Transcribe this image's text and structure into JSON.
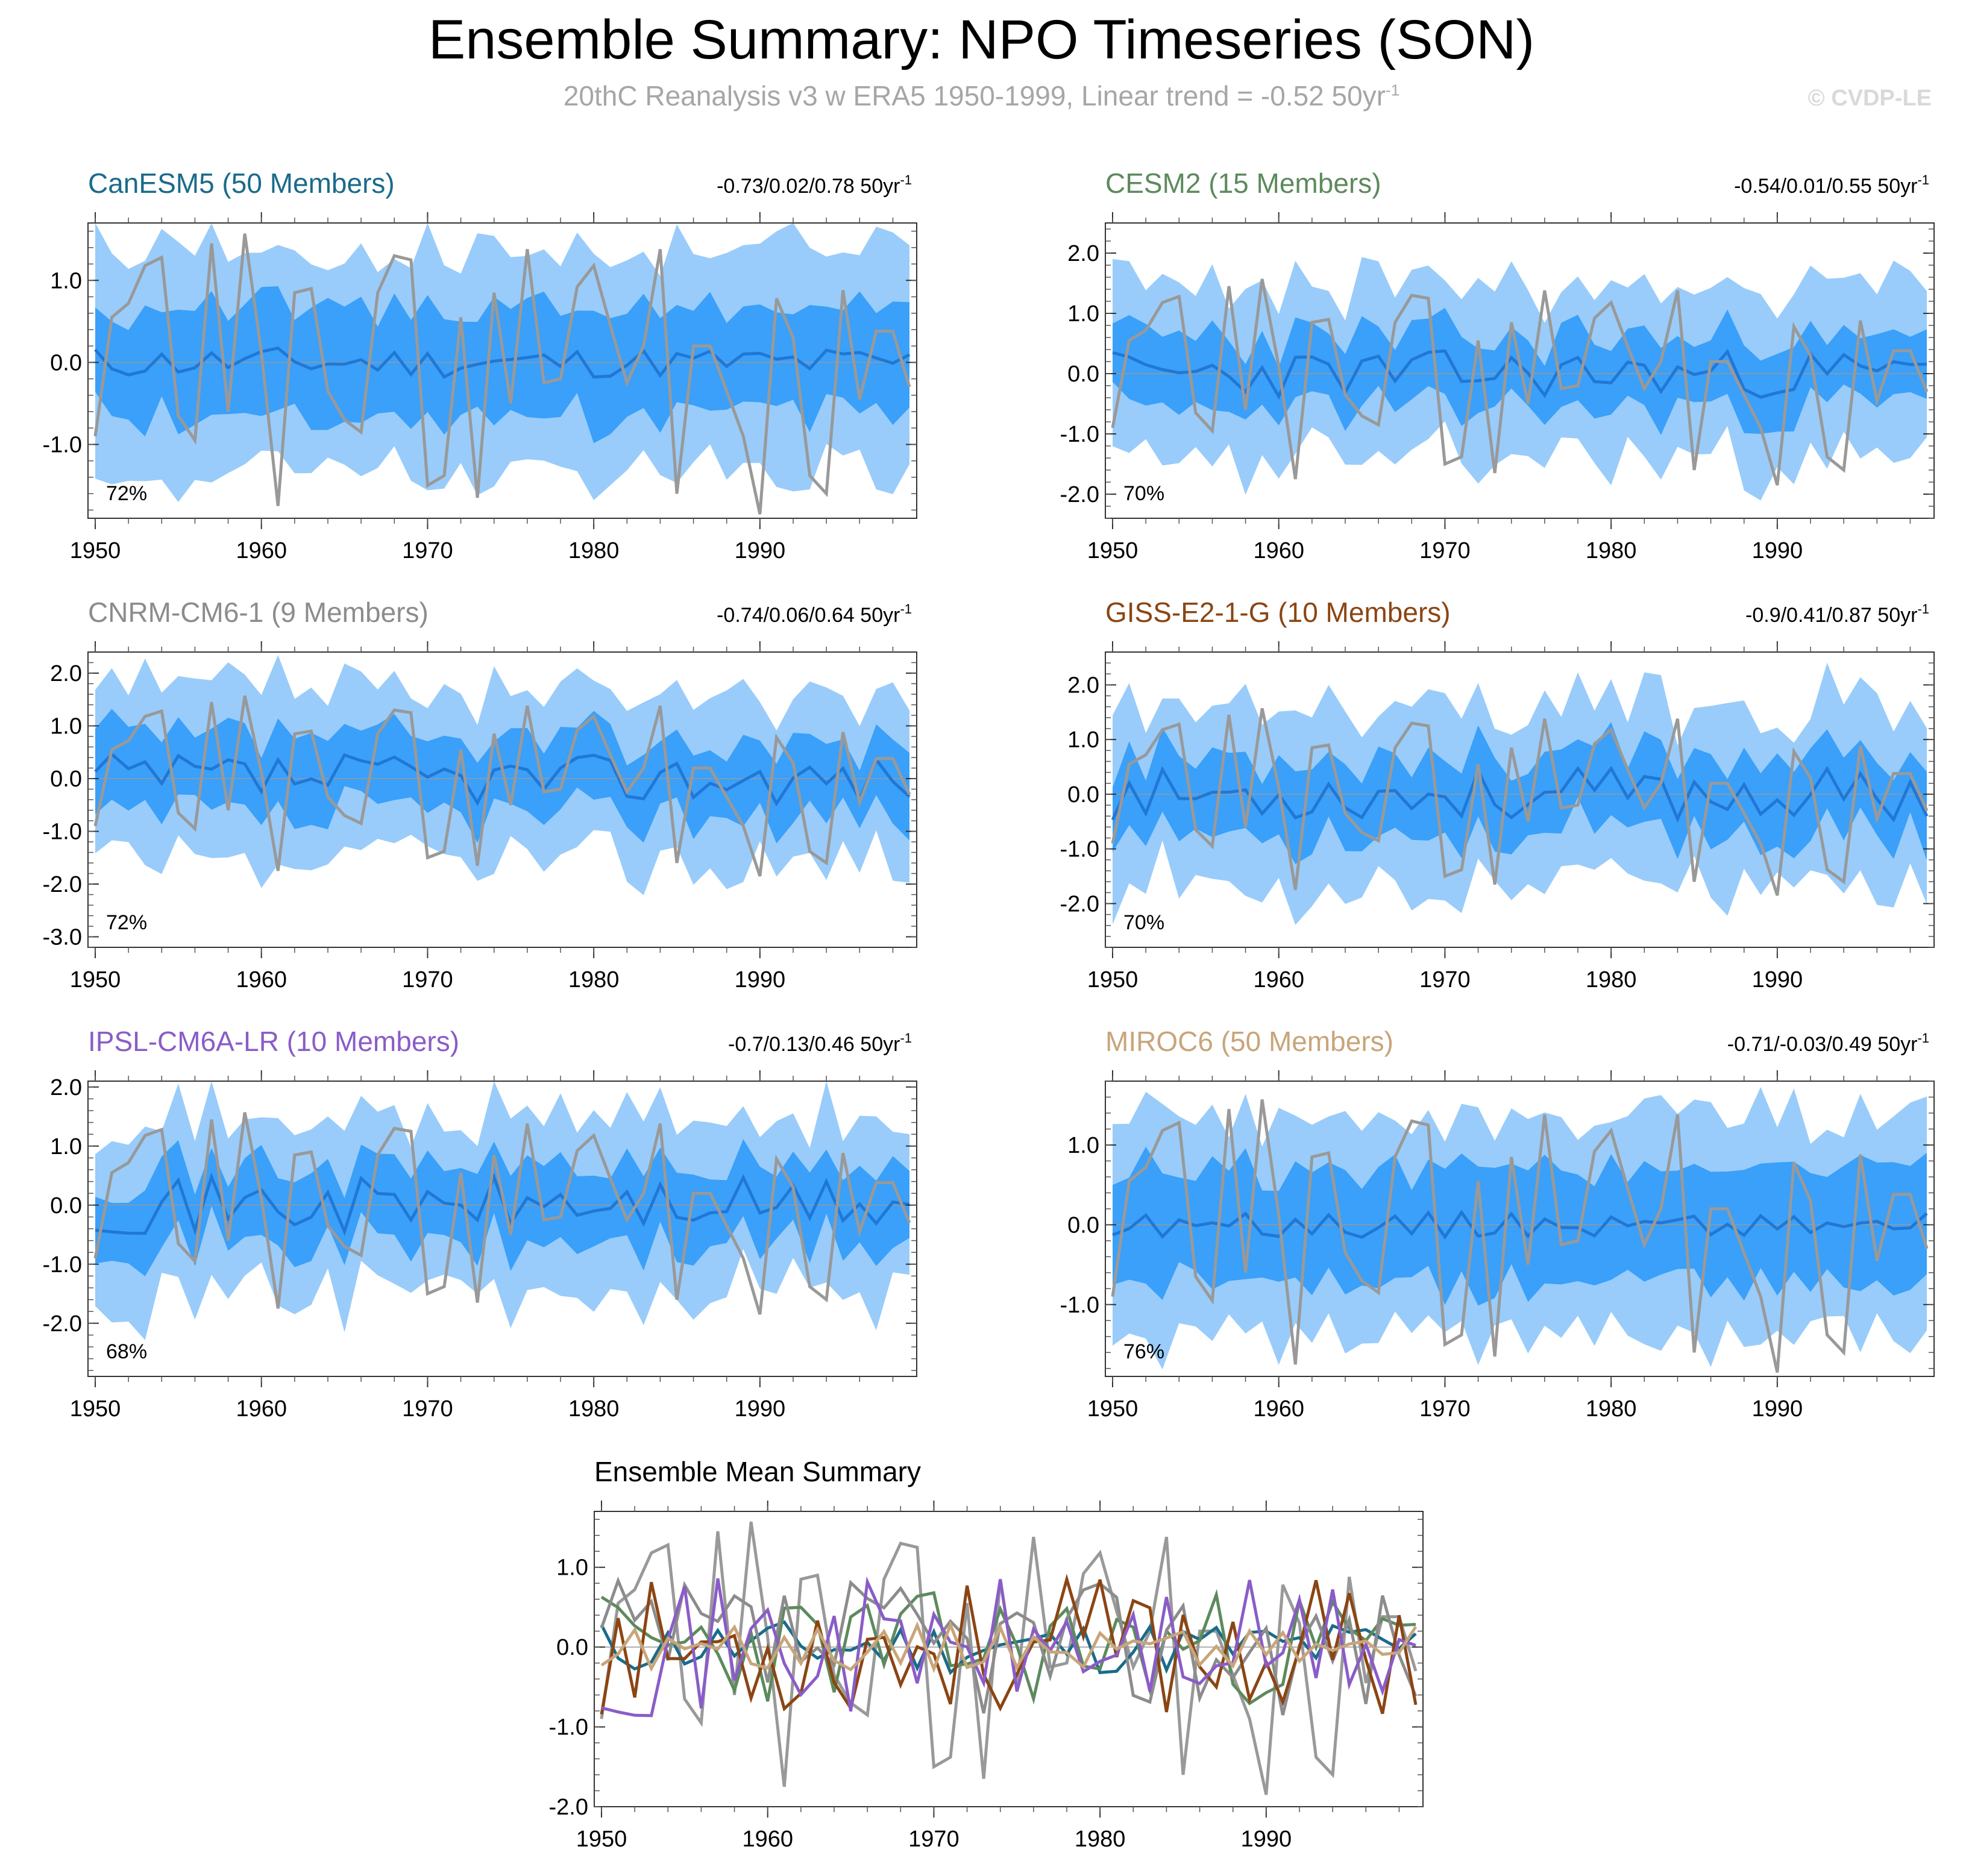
{
  "page": {
    "title": "Ensemble Summary: NPO Timeseries (SON)",
    "subtitle_main": "20thC Reanalysis v3 w ERA5 1950-1999, Linear trend = -0.52 50yr",
    "subtitle_sup": "-1",
    "watermark": "© CVDP-LE"
  },
  "colors": {
    "band_outer": "#99ccfa",
    "band_inner": "#3aa0f9",
    "ensemble_mean": "#2177d5",
    "observed": "#999999",
    "zero_line": "#999999"
  },
  "chart_data": [
    {
      "type": "area",
      "title": "CanESM5 (50 Members)",
      "title_color": "#1a6b8a",
      "trend_label": "-0.73/0.02/0.78 50yr",
      "trend_sup": "-1",
      "percent_label": "72%",
      "ylim": [
        -1.9,
        1.7
      ],
      "yticks": [
        1.0,
        0.0,
        -1.0
      ],
      "ytick_labels": [
        "1.0",
        "0.0",
        "-1.0"
      ],
      "xticks": [
        1950,
        1960,
        1970,
        1980,
        1990
      ],
      "seed": 11,
      "mean_amp": 0.12,
      "inner_half": 0.65,
      "outer_half": 1.35
    },
    {
      "type": "area",
      "title": "CESM2 (15 Members)",
      "title_color": "#5d8a5d",
      "trend_label": "-0.54/0.01/0.55 50yr",
      "trend_sup": "-1",
      "percent_label": "70%",
      "ylim": [
        -2.4,
        2.5
      ],
      "yticks": [
        2.0,
        1.0,
        0.0,
        -1.0,
        -2.0
      ],
      "ytick_labels": [
        "2.0",
        "1.0",
        "0.0",
        "-1.0",
        "-2.0"
      ],
      "xticks": [
        1950,
        1960,
        1970,
        1980,
        1990
      ],
      "seed": 23,
      "mean_amp": 0.25,
      "inner_half": 0.6,
      "outer_half": 1.4
    },
    {
      "type": "area",
      "title": "CNRM-CM6-1 (9 Members)",
      "title_color": "#8c8c8c",
      "trend_label": "-0.74/0.06/0.64 50yr",
      "trend_sup": "-1",
      "percent_label": "72%",
      "ylim": [
        -3.2,
        2.4
      ],
      "yticks": [
        2.0,
        1.0,
        0.0,
        -1.0,
        -2.0,
        -3.0
      ],
      "ytick_labels": [
        "2.0",
        "1.0",
        "0.0",
        "-1.0",
        "-2.0",
        "-3.0"
      ],
      "xticks": [
        1950,
        1960,
        1970,
        1980,
        1990
      ],
      "seed": 37,
      "mean_amp": 0.3,
      "inner_half": 0.7,
      "outer_half": 1.6
    },
    {
      "type": "area",
      "title": "GISS-E2-1-G (10 Members)",
      "title_color": "#8b4513",
      "trend_label": "-0.9/0.41/0.87 50yr",
      "trend_sup": "-1",
      "percent_label": "70%",
      "ylim": [
        -2.8,
        2.6
      ],
      "yticks": [
        2.0,
        1.0,
        0.0,
        -1.0,
        -2.0
      ],
      "ytick_labels": [
        "2.0",
        "1.0",
        "0.0",
        "-1.0",
        "-2.0"
      ],
      "xticks": [
        1950,
        1960,
        1970,
        1980,
        1990
      ],
      "seed": 53,
      "mean_amp": 0.3,
      "inner_half": 0.7,
      "outer_half": 1.6
    },
    {
      "type": "area",
      "title": "IPSL-CM6A-LR (10 Members)",
      "title_color": "#8a5cc8",
      "trend_label": "-0.7/0.13/0.46 50yr",
      "trend_sup": "-1",
      "percent_label": "68%",
      "ylim": [
        -2.9,
        2.1
      ],
      "yticks": [
        2.0,
        1.0,
        0.0,
        -1.0,
        -2.0
      ],
      "ytick_labels": [
        "2.0",
        "1.0",
        "0.0",
        "-1.0",
        "-2.0"
      ],
      "xticks": [
        1950,
        1960,
        1970,
        1980,
        1990
      ],
      "seed": 71,
      "mean_amp": 0.3,
      "inner_half": 0.65,
      "outer_half": 1.45
    },
    {
      "type": "area",
      "title": "MIROC6 (50 Members)",
      "title_color": "#c8a57a",
      "trend_label": "-0.71/-0.03/0.49 50yr",
      "trend_sup": "-1",
      "percent_label": "76%",
      "ylim": [
        -1.9,
        1.8
      ],
      "yticks": [
        1.0,
        0.0,
        -1.0
      ],
      "ytick_labels": [
        "1.0",
        "0.0",
        "-1.0"
      ],
      "xticks": [
        1950,
        1960,
        1970,
        1980,
        1990
      ],
      "seed": 89,
      "mean_amp": 0.1,
      "inner_half": 0.7,
      "outer_half": 1.35
    },
    {
      "type": "line",
      "title": "Ensemble Mean Summary",
      "ylim": [
        -2.0,
        1.7
      ],
      "yticks": [
        1.0,
        0.0,
        -1.0,
        -2.0
      ],
      "ytick_labels": [
        "1.0",
        "0.0",
        "-1.0",
        "-2.0"
      ],
      "xticks": [
        1950,
        1960,
        1970,
        1980,
        1990
      ],
      "series": [
        {
          "name": "CanESM5",
          "color": "#1a6b8a",
          "seed": 11,
          "amp": 0.12
        },
        {
          "name": "CESM2",
          "color": "#5d8a5d",
          "seed": 23,
          "amp": 0.25
        },
        {
          "name": "CNRM-CM6-1",
          "color": "#8c8c8c",
          "seed": 37,
          "amp": 0.3
        },
        {
          "name": "GISS-E2-1-G",
          "color": "#8b4513",
          "seed": 53,
          "amp": 0.3
        },
        {
          "name": "IPSL-CM6A-LR",
          "color": "#8a5cc8",
          "seed": 71,
          "amp": 0.3
        },
        {
          "name": "MIROC6",
          "color": "#c8a57a",
          "seed": 89,
          "amp": 0.1
        }
      ]
    }
  ],
  "observed": {
    "name": "20thC Reanalysis v3 w ERA5",
    "years": [
      1950,
      1951,
      1952,
      1953,
      1954,
      1955,
      1956,
      1957,
      1958,
      1959,
      1960,
      1961,
      1962,
      1963,
      1964,
      1965,
      1966,
      1967,
      1968,
      1969,
      1970,
      1971,
      1972,
      1973,
      1974,
      1975,
      1976,
      1977,
      1978,
      1979,
      1980,
      1981,
      1982,
      1983,
      1984,
      1985,
      1986,
      1987,
      1988,
      1989,
      1990,
      1991,
      1992,
      1993,
      1994,
      1995,
      1996,
      1997,
      1998,
      1999
    ],
    "values": [
      -0.9,
      0.55,
      0.72,
      1.18,
      1.28,
      -0.65,
      -0.95,
      1.45,
      -0.6,
      1.57,
      0.12,
      -1.75,
      0.85,
      0.9,
      -0.35,
      -0.7,
      -0.85,
      0.85,
      1.3,
      1.25,
      -1.5,
      -1.38,
      0.55,
      -1.65,
      0.85,
      -0.5,
      1.38,
      -0.25,
      -0.2,
      0.92,
      1.18,
      0.45,
      -0.25,
      0.2,
      1.38,
      -1.6,
      0.2,
      0.2,
      -0.35,
      -0.9,
      -1.85,
      0.78,
      0.3,
      -1.38,
      -1.6,
      0.88,
      -0.45,
      0.38,
      0.38,
      -0.3
    ]
  }
}
